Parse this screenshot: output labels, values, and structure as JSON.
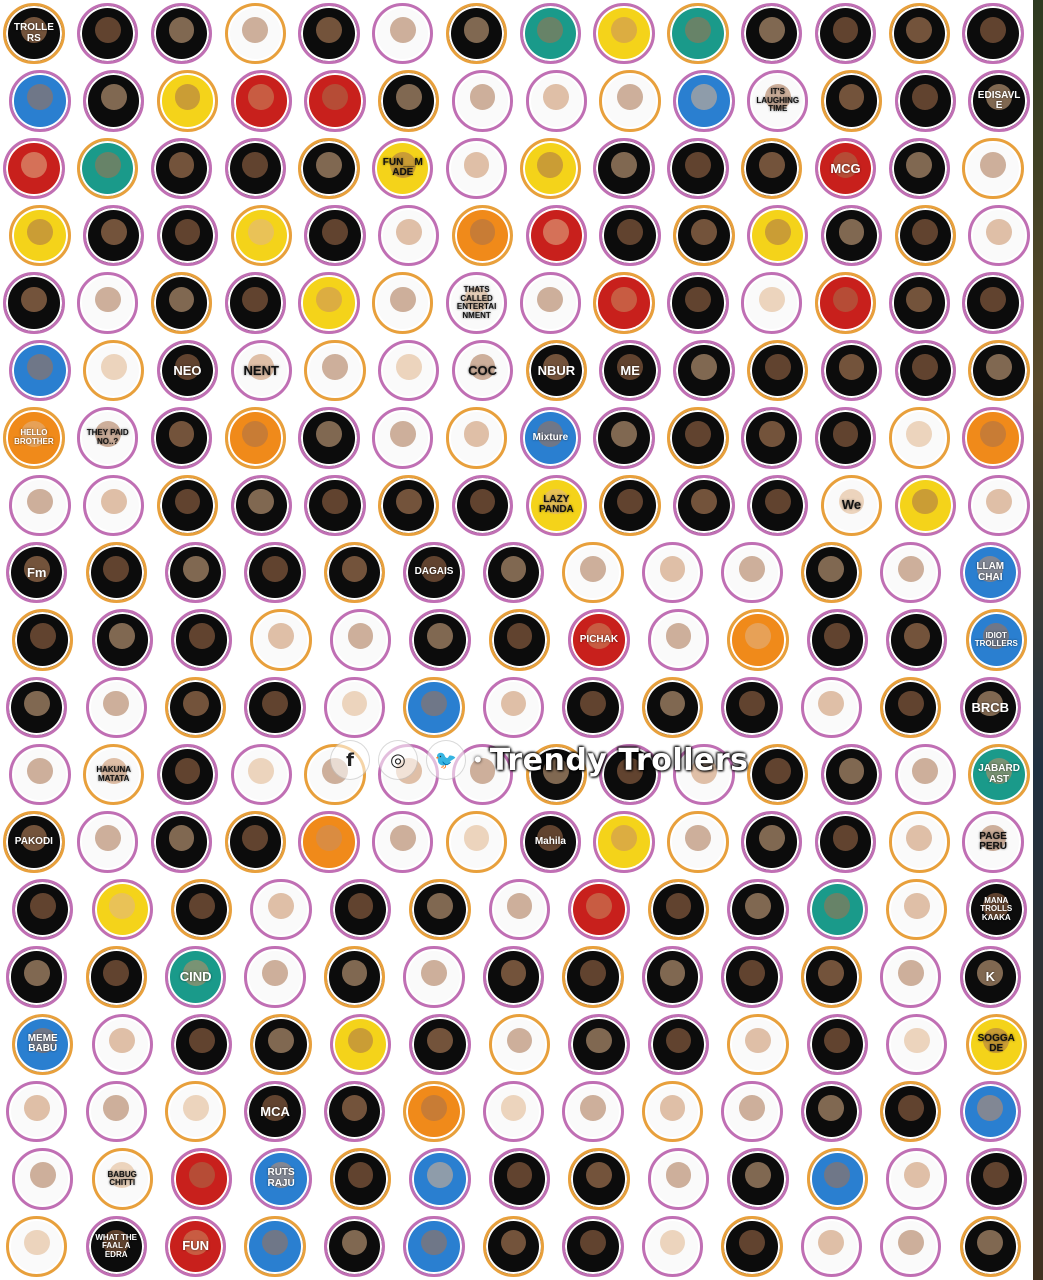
{
  "watermark": {
    "icons": [
      "facebook-icon",
      "instagram-icon",
      "twitter-icon"
    ],
    "icon_glyphs": [
      "f",
      "◎",
      "🐦"
    ],
    "text": "Trendy Trollers"
  },
  "palette": {
    "ring": "#c06fb4",
    "ring2": "#e8a03c",
    "black": "#0c0c0c",
    "white": "#fafafa",
    "yellow": "#f4d31a",
    "red": "#c8201c",
    "blue": "#2a7fd0",
    "orange": "#f08a1a",
    "teal": "#1a9a8a"
  },
  "rows": [
    [
      {
        "t": "TROLLERS",
        "c": "black"
      },
      {
        "t": "",
        "c": "black"
      },
      {
        "t": "",
        "c": "black"
      },
      {
        "t": "",
        "c": "white"
      },
      {
        "t": "",
        "c": "black"
      },
      {
        "t": "",
        "c": "white"
      },
      {
        "t": "",
        "c": "black"
      },
      {
        "t": "",
        "c": "teal"
      },
      {
        "t": "",
        "c": "yellow"
      },
      {
        "t": "",
        "c": "teal"
      },
      {
        "t": "",
        "c": "black"
      },
      {
        "t": "",
        "c": "black"
      },
      {
        "t": "",
        "c": "black"
      },
      {
        "t": "",
        "c": "black"
      }
    ],
    [
      {
        "t": "",
        "c": "blue"
      },
      {
        "t": "",
        "c": "black"
      },
      {
        "t": "",
        "c": "yellow"
      },
      {
        "t": "",
        "c": "red"
      },
      {
        "t": "",
        "c": "red"
      },
      {
        "t": "",
        "c": "black"
      },
      {
        "t": "",
        "c": "white"
      },
      {
        "t": "",
        "c": "white"
      },
      {
        "t": "",
        "c": "white"
      },
      {
        "t": "",
        "c": "blue"
      },
      {
        "t": "IT'S LAUGHING TIME",
        "c": "white"
      },
      {
        "t": "",
        "c": "black"
      },
      {
        "t": "",
        "c": "black"
      },
      {
        "t": "EDISAVLE",
        "c": "black"
      }
    ],
    [
      {
        "t": "",
        "c": "red"
      },
      {
        "t": "",
        "c": "teal"
      },
      {
        "t": "",
        "c": "black"
      },
      {
        "t": "",
        "c": "black"
      },
      {
        "t": "",
        "c": "black"
      },
      {
        "t": "FUN__MADE",
        "c": "yellow"
      },
      {
        "t": "",
        "c": "white"
      },
      {
        "t": "",
        "c": "yellow"
      },
      {
        "t": "",
        "c": "black"
      },
      {
        "t": "",
        "c": "black"
      },
      {
        "t": "",
        "c": "black"
      },
      {
        "t": "MCG",
        "c": "red"
      },
      {
        "t": "",
        "c": "black"
      },
      {
        "t": "",
        "c": "white"
      }
    ],
    [
      {
        "t": "",
        "c": "yellow"
      },
      {
        "t": "",
        "c": "black"
      },
      {
        "t": "",
        "c": "black"
      },
      {
        "t": "",
        "c": "yellow"
      },
      {
        "t": "",
        "c": "black"
      },
      {
        "t": "",
        "c": "white"
      },
      {
        "t": "",
        "c": "orange"
      },
      {
        "t": "",
        "c": "red"
      },
      {
        "t": "",
        "c": "black"
      },
      {
        "t": "",
        "c": "black"
      },
      {
        "t": "",
        "c": "yellow"
      },
      {
        "t": "",
        "c": "black"
      },
      {
        "t": "",
        "c": "black"
      },
      {
        "t": "",
        "c": "white"
      }
    ],
    [
      {
        "t": "",
        "c": "black"
      },
      {
        "t": "",
        "c": "white"
      },
      {
        "t": "",
        "c": "black"
      },
      {
        "t": "",
        "c": "black"
      },
      {
        "t": "",
        "c": "yellow"
      },
      {
        "t": "",
        "c": "white"
      },
      {
        "t": "THATS CALLED ENTERTAINMENT",
        "c": "white"
      },
      {
        "t": "",
        "c": "white"
      },
      {
        "t": "",
        "c": "red"
      },
      {
        "t": "",
        "c": "black"
      },
      {
        "t": "",
        "c": "white"
      },
      {
        "t": "",
        "c": "red"
      },
      {
        "t": "",
        "c": "black"
      },
      {
        "t": "",
        "c": "black"
      }
    ],
    [
      {
        "t": "",
        "c": "blue"
      },
      {
        "t": "",
        "c": "white"
      },
      {
        "t": "NEO",
        "c": "black"
      },
      {
        "t": "NENT",
        "c": "white"
      },
      {
        "t": "",
        "c": "white"
      },
      {
        "t": "",
        "c": "white"
      },
      {
        "t": "COC",
        "c": "white"
      },
      {
        "t": "NBUR",
        "c": "black"
      },
      {
        "t": "ME",
        "c": "black"
      },
      {
        "t": "",
        "c": "black"
      },
      {
        "t": "",
        "c": "black"
      },
      {
        "t": "",
        "c": "black"
      },
      {
        "t": "",
        "c": "black"
      },
      {
        "t": "",
        "c": "black"
      }
    ],
    [
      {
        "t": "HELLO BROTHER",
        "c": "orange"
      },
      {
        "t": "THEY PAID NO..?",
        "c": "white"
      },
      {
        "t": "",
        "c": "black"
      },
      {
        "t": "",
        "c": "orange"
      },
      {
        "t": "",
        "c": "black"
      },
      {
        "t": "",
        "c": "white"
      },
      {
        "t": "",
        "c": "white"
      },
      {
        "t": "Mixture",
        "c": "blue"
      },
      {
        "t": "",
        "c": "black"
      },
      {
        "t": "",
        "c": "black"
      },
      {
        "t": "",
        "c": "black"
      },
      {
        "t": "",
        "c": "black"
      },
      {
        "t": "",
        "c": "white"
      },
      {
        "t": "",
        "c": "orange"
      }
    ],
    [
      {
        "t": "",
        "c": "white"
      },
      {
        "t": "",
        "c": "white"
      },
      {
        "t": "",
        "c": "black"
      },
      {
        "t": "",
        "c": "black"
      },
      {
        "t": "",
        "c": "black"
      },
      {
        "t": "",
        "c": "black"
      },
      {
        "t": "",
        "c": "black"
      },
      {
        "t": "LAZY PANDA",
        "c": "yellow"
      },
      {
        "t": "",
        "c": "black"
      },
      {
        "t": "",
        "c": "black"
      },
      {
        "t": "",
        "c": "black"
      },
      {
        "t": "We",
        "c": "white"
      },
      {
        "t": "",
        "c": "yellow"
      },
      {
        "t": "",
        "c": "white"
      }
    ],
    [
      {
        "t": "Fm",
        "c": "black"
      },
      {
        "t": "",
        "c": "black"
      },
      {
        "t": "",
        "c": "black"
      },
      {
        "t": "",
        "c": "black"
      },
      {
        "t": "",
        "c": "black"
      },
      {
        "t": "DAGAIS",
        "c": "black"
      },
      {
        "t": "",
        "c": "black"
      },
      {
        "t": "",
        "c": "white"
      },
      {
        "t": "",
        "c": "white"
      },
      {
        "t": "",
        "c": "white"
      },
      {
        "t": "",
        "c": "black"
      },
      {
        "t": "",
        "c": "white"
      },
      {
        "t": "LLAM CHAI",
        "c": "blue"
      }
    ],
    [
      {
        "t": "",
        "c": "black"
      },
      {
        "t": "",
        "c": "black"
      },
      {
        "t": "",
        "c": "black"
      },
      {
        "t": "",
        "c": "white"
      },
      {
        "t": "",
        "c": "white"
      },
      {
        "t": "",
        "c": "black"
      },
      {
        "t": "",
        "c": "black"
      },
      {
        "t": "PICHAK",
        "c": "red"
      },
      {
        "t": "",
        "c": "white"
      },
      {
        "t": "",
        "c": "orange"
      },
      {
        "t": "",
        "c": "black"
      },
      {
        "t": "",
        "c": "black"
      },
      {
        "t": "IDIOT TROLLERS",
        "c": "blue"
      }
    ],
    [
      {
        "t": "",
        "c": "black"
      },
      {
        "t": "",
        "c": "white"
      },
      {
        "t": "",
        "c": "black"
      },
      {
        "t": "",
        "c": "black"
      },
      {
        "t": "",
        "c": "white"
      },
      {
        "t": "",
        "c": "blue"
      },
      {
        "t": "",
        "c": "white"
      },
      {
        "t": "",
        "c": "black"
      },
      {
        "t": "",
        "c": "black"
      },
      {
        "t": "",
        "c": "black"
      },
      {
        "t": "",
        "c": "white"
      },
      {
        "t": "",
        "c": "black"
      },
      {
        "t": "BRCB",
        "c": "black"
      }
    ],
    [
      {
        "t": "",
        "c": "white"
      },
      {
        "t": "HAKUNA MATATA",
        "c": "white"
      },
      {
        "t": "",
        "c": "black"
      },
      {
        "t": "",
        "c": "white"
      },
      {
        "t": "",
        "c": "white"
      },
      {
        "t": "",
        "c": "white"
      },
      {
        "t": "",
        "c": "white"
      },
      {
        "t": "",
        "c": "black"
      },
      {
        "t": "",
        "c": "black"
      },
      {
        "t": "",
        "c": "white"
      },
      {
        "t": "",
        "c": "black"
      },
      {
        "t": "",
        "c": "black"
      },
      {
        "t": "",
        "c": "white"
      },
      {
        "t": "JABARDAST",
        "c": "teal"
      }
    ],
    [
      {
        "t": "PAKODI",
        "c": "black"
      },
      {
        "t": "",
        "c": "white"
      },
      {
        "t": "",
        "c": "black"
      },
      {
        "t": "",
        "c": "black"
      },
      {
        "t": "",
        "c": "orange"
      },
      {
        "t": "",
        "c": "white"
      },
      {
        "t": "",
        "c": "white"
      },
      {
        "t": "Mahila",
        "c": "black"
      },
      {
        "t": "",
        "c": "yellow"
      },
      {
        "t": "",
        "c": "white"
      },
      {
        "t": "",
        "c": "black"
      },
      {
        "t": "",
        "c": "black"
      },
      {
        "t": "",
        "c": "white"
      },
      {
        "t": "PAGE PERU",
        "c": "white"
      }
    ],
    [
      {
        "t": "",
        "c": "black"
      },
      {
        "t": "",
        "c": "yellow"
      },
      {
        "t": "",
        "c": "black"
      },
      {
        "t": "",
        "c": "white"
      },
      {
        "t": "",
        "c": "black"
      },
      {
        "t": "",
        "c": "black"
      },
      {
        "t": "",
        "c": "white"
      },
      {
        "t": "",
        "c": "red"
      },
      {
        "t": "",
        "c": "black"
      },
      {
        "t": "",
        "c": "black"
      },
      {
        "t": "",
        "c": "teal"
      },
      {
        "t": "",
        "c": "white"
      },
      {
        "t": "MANA TROLLS KAAKA",
        "c": "black"
      }
    ],
    [
      {
        "t": "",
        "c": "black"
      },
      {
        "t": "",
        "c": "black"
      },
      {
        "t": "CIND",
        "c": "teal"
      },
      {
        "t": "",
        "c": "white"
      },
      {
        "t": "",
        "c": "black"
      },
      {
        "t": "",
        "c": "white"
      },
      {
        "t": "",
        "c": "black"
      },
      {
        "t": "",
        "c": "black"
      },
      {
        "t": "",
        "c": "black"
      },
      {
        "t": "",
        "c": "black"
      },
      {
        "t": "",
        "c": "black"
      },
      {
        "t": "",
        "c": "white"
      },
      {
        "t": "K",
        "c": "black"
      }
    ],
    [
      {
        "t": "MEME BABU",
        "c": "blue"
      },
      {
        "t": "",
        "c": "white"
      },
      {
        "t": "",
        "c": "black"
      },
      {
        "t": "",
        "c": "black"
      },
      {
        "t": "",
        "c": "yellow"
      },
      {
        "t": "",
        "c": "black"
      },
      {
        "t": "",
        "c": "white"
      },
      {
        "t": "",
        "c": "black"
      },
      {
        "t": "",
        "c": "black"
      },
      {
        "t": "",
        "c": "white"
      },
      {
        "t": "",
        "c": "black"
      },
      {
        "t": "",
        "c": "white"
      },
      {
        "t": "SOGGADE",
        "c": "yellow"
      }
    ],
    [
      {
        "t": "",
        "c": "white"
      },
      {
        "t": "",
        "c": "white"
      },
      {
        "t": "",
        "c": "white"
      },
      {
        "t": "MCA",
        "c": "black"
      },
      {
        "t": "",
        "c": "black"
      },
      {
        "t": "",
        "c": "orange"
      },
      {
        "t": "",
        "c": "white"
      },
      {
        "t": "",
        "c": "white"
      },
      {
        "t": "",
        "c": "white"
      },
      {
        "t": "",
        "c": "white"
      },
      {
        "t": "",
        "c": "black"
      },
      {
        "t": "",
        "c": "black"
      },
      {
        "t": "",
        "c": "blue"
      }
    ],
    [
      {
        "t": "",
        "c": "white"
      },
      {
        "t": "BABUG CHITTI",
        "c": "white"
      },
      {
        "t": "",
        "c": "red"
      },
      {
        "t": "RUTS RAJU",
        "c": "blue"
      },
      {
        "t": "",
        "c": "black"
      },
      {
        "t": "",
        "c": "blue"
      },
      {
        "t": "",
        "c": "black"
      },
      {
        "t": "",
        "c": "black"
      },
      {
        "t": "",
        "c": "white"
      },
      {
        "t": "",
        "c": "black"
      },
      {
        "t": "",
        "c": "blue"
      },
      {
        "t": "",
        "c": "white"
      },
      {
        "t": "",
        "c": "black"
      }
    ],
    [
      {
        "t": "",
        "c": "white"
      },
      {
        "t": "WHAT THE FAAL A EDRA",
        "c": "black"
      },
      {
        "t": "FUN",
        "c": "red"
      },
      {
        "t": "",
        "c": "blue"
      },
      {
        "t": "",
        "c": "black"
      },
      {
        "t": "",
        "c": "blue"
      },
      {
        "t": "",
        "c": "black"
      },
      {
        "t": "",
        "c": "black"
      },
      {
        "t": "",
        "c": "white"
      },
      {
        "t": "",
        "c": "black"
      },
      {
        "t": "",
        "c": "white"
      },
      {
        "t": "",
        "c": "white"
      },
      {
        "t": "",
        "c": "black"
      }
    ]
  ]
}
